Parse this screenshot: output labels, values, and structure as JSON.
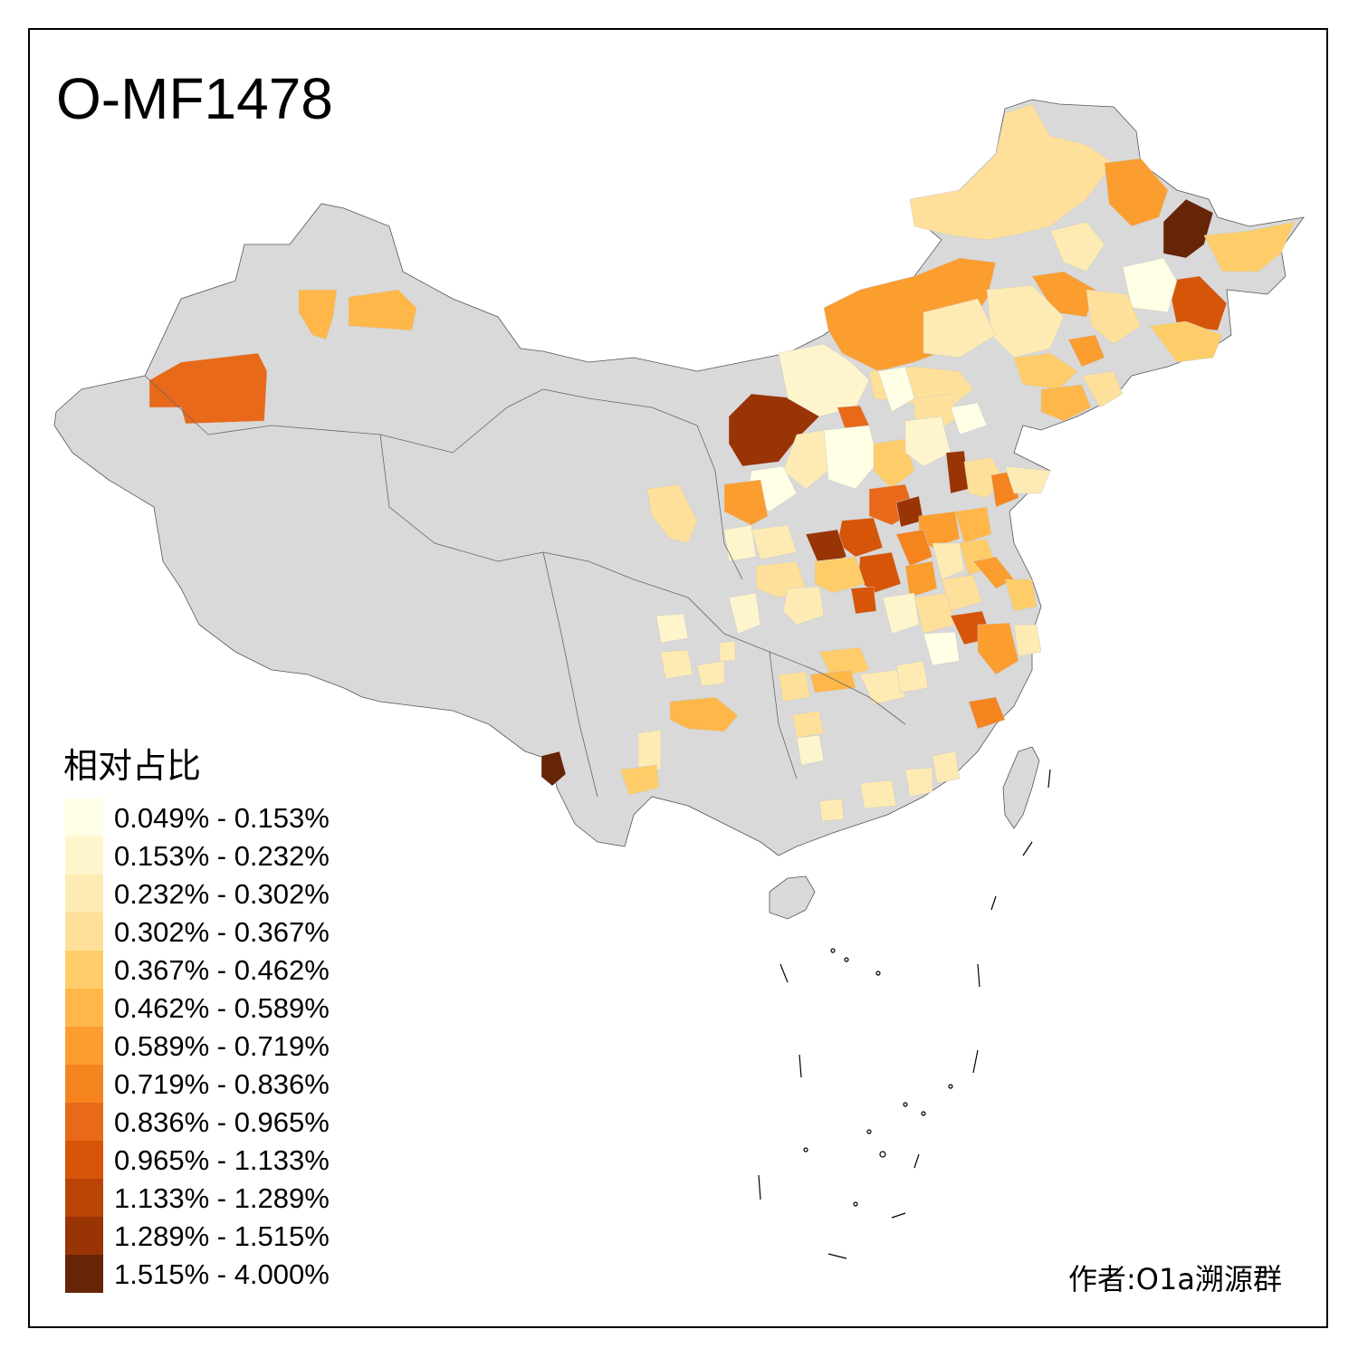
{
  "title": "O-MF1478",
  "legend": {
    "title": "相对占比",
    "items": [
      {
        "label": "0.049% - 0.153%",
        "color": "#FFFFE5"
      },
      {
        "label": "0.153% - 0.232%",
        "color": "#FFF5CC"
      },
      {
        "label": "0.232% - 0.302%",
        "color": "#FEEBB3"
      },
      {
        "label": "0.302% - 0.367%",
        "color": "#FEE09A"
      },
      {
        "label": "0.367% - 0.462%",
        "color": "#FECD69"
      },
      {
        "label": "0.462% - 0.589%",
        "color": "#FEB748"
      },
      {
        "label": "0.589% - 0.719%",
        "color": "#FB9D2F"
      },
      {
        "label": "0.719% - 0.836%",
        "color": "#F5841F"
      },
      {
        "label": "0.836% - 0.965%",
        "color": "#E8691A"
      },
      {
        "label": "0.965% - 1.133%",
        "color": "#D65509"
      },
      {
        "label": "1.133% - 1.289%",
        "color": "#BB4306"
      },
      {
        "label": "1.289% - 1.515%",
        "color": "#993404"
      },
      {
        "label": "1.515% - 4.000%",
        "color": "#662506"
      }
    ]
  },
  "credit": "作者:O1a溯源群",
  "colors": {
    "no_data": "#D9D9D9",
    "border": "#555555",
    "background": "#FFFFFF"
  }
}
